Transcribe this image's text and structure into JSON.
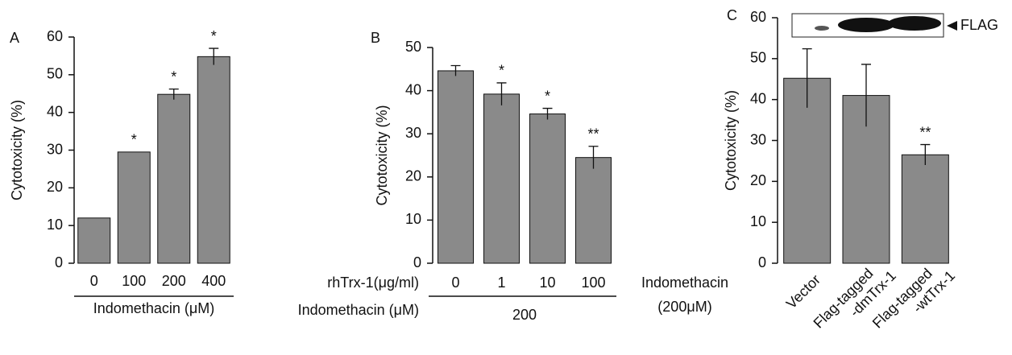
{
  "chart_data": [
    {
      "type": "bar",
      "panel_label": "A",
      "ylabel": "Cytotoxicity (%)",
      "categories": [
        "0",
        "100",
        "200",
        "400"
      ],
      "values": [
        12,
        29.5,
        44.8,
        54.8
      ],
      "errors": [
        null,
        null,
        1.4,
        2.2
      ],
      "annotations": [
        null,
        "*",
        "*",
        "*"
      ],
      "xlabel": "Indomethacin (μM)",
      "color": "#8a8a8a",
      "ylim": [
        0,
        60
      ],
      "yticks": [
        0,
        10,
        20,
        30,
        40,
        50,
        60
      ]
    },
    {
      "type": "bar",
      "panel_label": "B",
      "ylabel": "Cytotoxicity (%)",
      "categories": [
        "0",
        "1",
        "10",
        "100"
      ],
      "values": [
        44.6,
        39.2,
        34.6,
        24.5
      ],
      "errors": [
        1.2,
        2.6,
        1.3,
        2.6
      ],
      "annotations": [
        null,
        "*",
        "*",
        "**"
      ],
      "row_labels": [
        "rhTrx-1(μg/ml)",
        "Indomethacin (μM)"
      ],
      "group_label": "200",
      "side_note": [
        "Indomethacin",
        "(200μM)"
      ],
      "color": "#8a8a8a",
      "ylim": [
        0,
        50
      ],
      "yticks": [
        0,
        10,
        20,
        30,
        40,
        50
      ]
    },
    {
      "type": "bar",
      "panel_label": "C",
      "ylabel": "Cytotoxicity (%)",
      "categories": [
        "Vector",
        "Flag-tagged -dmTrx-1",
        "Flag-tagged -wtTrx-1"
      ],
      "values": [
        45.2,
        41,
        26.5
      ],
      "errors": [
        7.2,
        7.6,
        2.5
      ],
      "annotations": [
        null,
        null,
        "**"
      ],
      "blot_label": "FLAG",
      "color": "#8a8a8a",
      "ylim": [
        0,
        60
      ],
      "yticks": [
        0,
        10,
        20,
        30,
        40,
        50,
        60
      ]
    }
  ]
}
